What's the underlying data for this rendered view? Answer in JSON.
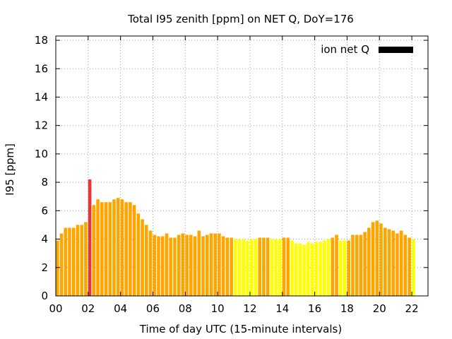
{
  "chart_data": {
    "type": "bar",
    "title": "Total I95 zenith [ppm] on NET Q, DoY=176",
    "xlabel": "Time of day UTC (15-minute intervals)",
    "ylabel": "I95 [ppm]",
    "xlim": [
      0,
      23
    ],
    "ylim": [
      0,
      18.3
    ],
    "x_ticks": [
      "00",
      "02",
      "04",
      "06",
      "08",
      "10",
      "12",
      "14",
      "16",
      "18",
      "20",
      "22"
    ],
    "y_ticks": [
      "0",
      "2",
      "4",
      "6",
      "8",
      "10",
      "12",
      "14",
      "16",
      "18"
    ],
    "grid": true,
    "legend": {
      "label": "ion net Q",
      "color": "#000000",
      "position": "top-right"
    },
    "colors": {
      "orange": "#ffa500",
      "yellow": "#ffff00",
      "red": "#f03232"
    },
    "bar_interval_hours": 0.25,
    "values": [
      3.9,
      4.4,
      4.8,
      4.8,
      4.8,
      5.0,
      5.0,
      5.2,
      8.2,
      6.4,
      6.8,
      6.6,
      6.6,
      6.6,
      6.8,
      6.9,
      6.8,
      6.6,
      6.6,
      6.4,
      5.8,
      5.4,
      5.0,
      4.6,
      4.3,
      4.2,
      4.2,
      4.4,
      4.1,
      4.1,
      4.3,
      4.4,
      4.3,
      4.3,
      4.2,
      4.6,
      4.2,
      4.3,
      4.4,
      4.4,
      4.4,
      4.2,
      4.1,
      4.1,
      4.0,
      4.0,
      4.0,
      3.9,
      4.0,
      4.0,
      4.1,
      4.1,
      4.1,
      4.0,
      4.0,
      4.0,
      4.1,
      4.1,
      3.9,
      3.7,
      3.7,
      3.6,
      3.8,
      3.7,
      3.8,
      3.8,
      3.9,
      4.0,
      4.1,
      4.3,
      3.9,
      3.9,
      3.9,
      4.3,
      4.3,
      4.3,
      4.5,
      4.8,
      5.2,
      5.3,
      5.1,
      4.8,
      4.7,
      4.6,
      4.4,
      4.6,
      4.3,
      4.1,
      4.0
    ],
    "bar_colors": [
      "orange",
      "orange",
      "orange",
      "orange",
      "orange",
      "orange",
      "orange",
      "orange",
      "red",
      "orange",
      "orange",
      "orange",
      "orange",
      "orange",
      "orange",
      "orange",
      "orange",
      "orange",
      "orange",
      "orange",
      "orange",
      "orange",
      "orange",
      "orange",
      "orange",
      "orange",
      "orange",
      "orange",
      "orange",
      "orange",
      "orange",
      "orange",
      "orange",
      "orange",
      "orange",
      "orange",
      "orange",
      "orange",
      "orange",
      "orange",
      "orange",
      "orange",
      "orange",
      "orange",
      "yellow",
      "yellow",
      "yellow",
      "yellow",
      "yellow",
      "yellow",
      "orange",
      "orange",
      "orange",
      "yellow",
      "yellow",
      "yellow",
      "orange",
      "orange",
      "yellow",
      "yellow",
      "yellow",
      "yellow",
      "yellow",
      "yellow",
      "yellow",
      "yellow",
      "yellow",
      "yellow",
      "orange",
      "orange",
      "yellow",
      "yellow",
      "orange",
      "orange",
      "orange",
      "orange",
      "orange",
      "orange",
      "orange",
      "orange",
      "orange",
      "orange",
      "orange",
      "orange",
      "orange",
      "orange",
      "orange",
      "orange",
      "yellow"
    ]
  }
}
